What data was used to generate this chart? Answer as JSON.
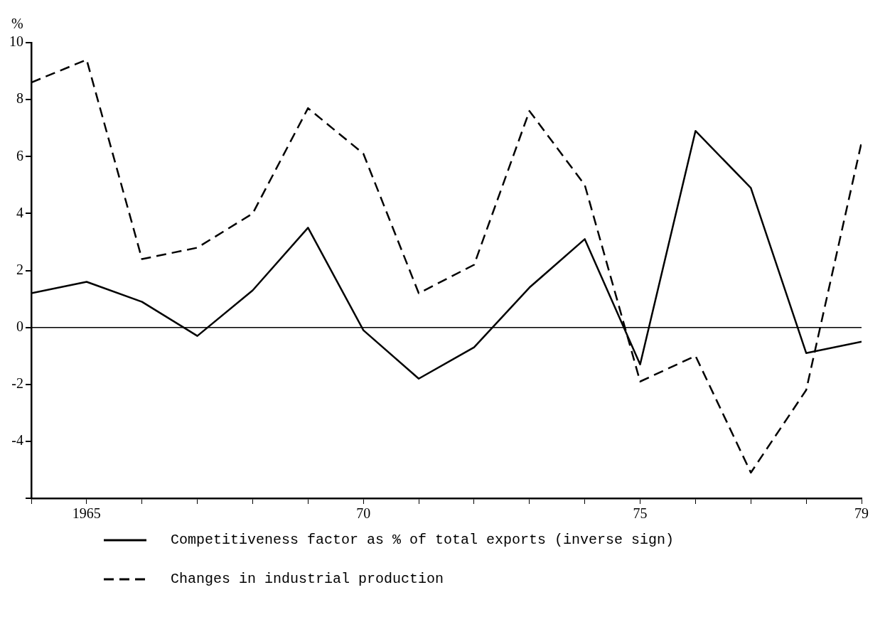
{
  "chart_data": {
    "type": "line",
    "ylabel": "%",
    "legend": "bottom",
    "grid": false,
    "marker": "none",
    "x": [
      1964,
      1965,
      1966,
      1967,
      1968,
      1969,
      1970,
      1971,
      1972,
      1973,
      1974,
      1975,
      1976,
      1977,
      1978,
      1979
    ],
    "xlim": [
      1964,
      1979
    ],
    "xticks": [
      {
        "value": 1964,
        "label": null
      },
      {
        "value": 1965,
        "label": "1965"
      },
      {
        "value": 1966,
        "label": null
      },
      {
        "value": 1967,
        "label": null
      },
      {
        "value": 1968,
        "label": null
      },
      {
        "value": 1969,
        "label": null
      },
      {
        "value": 1970,
        "label": "70"
      },
      {
        "value": 1971,
        "label": null
      },
      {
        "value": 1972,
        "label": null
      },
      {
        "value": 1973,
        "label": null
      },
      {
        "value": 1974,
        "label": null
      },
      {
        "value": 1975,
        "label": "75"
      },
      {
        "value": 1976,
        "label": null
      },
      {
        "value": 1977,
        "label": null
      },
      {
        "value": 1978,
        "label": null
      },
      {
        "value": 1979,
        "label": "79"
      }
    ],
    "ylim": [
      -6,
      10
    ],
    "yticks": [
      {
        "value": -6,
        "label": null
      },
      -4,
      -2,
      0,
      2,
      4,
      6,
      8,
      10
    ],
    "ref_lines": [
      {
        "axis": "y",
        "value": 0,
        "color": "#000000",
        "line_style": "solid"
      }
    ],
    "series": [
      {
        "name": "Competitiveness factor as % of total exports (inverse sign)",
        "color": "#000000",
        "line_style": "solid",
        "values": [
          1.2,
          1.6,
          0.9,
          -0.3,
          1.3,
          3.5,
          -0.1,
          -1.8,
          -0.7,
          1.4,
          3.1,
          -1.3,
          6.9,
          4.9,
          -0.9,
          -0.5
        ]
      },
      {
        "name": "Changes in industrial production",
        "color": "#000000",
        "line_style": "dashed",
        "values": [
          8.6,
          9.4,
          2.4,
          2.8,
          4.0,
          7.7,
          6.1,
          1.2,
          2.2,
          7.6,
          5.0,
          -1.9,
          -1.0,
          -5.1,
          -2.2,
          6.5
        ]
      }
    ]
  }
}
